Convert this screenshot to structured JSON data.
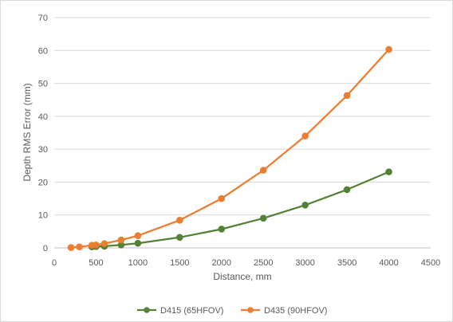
{
  "chart_data": {
    "type": "line",
    "title": "",
    "xlabel": "Distance, mm",
    "ylabel": "Depth RMS Error (mm)",
    "xlim": [
      0,
      4500
    ],
    "ylim": [
      0,
      70
    ],
    "xticks": [
      0,
      500,
      1000,
      1500,
      2000,
      2500,
      3000,
      3500,
      4000,
      4500
    ],
    "yticks": [
      0,
      10,
      20,
      30,
      40,
      50,
      60,
      70
    ],
    "grid": "horizontal",
    "legend_position": "bottom",
    "series": [
      {
        "name": "D415 (65HFOV)",
        "color": "#548235",
        "x": [
          450,
          500,
          600,
          800,
          1000,
          1500,
          2000,
          2500,
          3000,
          3500,
          4000
        ],
        "y": [
          0.3,
          0.4,
          0.5,
          0.9,
          1.4,
          3.2,
          5.7,
          9.0,
          13.0,
          17.7,
          23.1
        ]
      },
      {
        "name": "D435 (90HFOV)",
        "color": "#ED7D31",
        "x": [
          200,
          300,
          450,
          500,
          600,
          800,
          1000,
          1500,
          2000,
          2500,
          3000,
          3500,
          4000
        ],
        "y": [
          0.1,
          0.3,
          0.8,
          0.9,
          1.3,
          2.4,
          3.7,
          8.4,
          15.0,
          23.6,
          34.0,
          46.3,
          60.3
        ]
      }
    ]
  }
}
